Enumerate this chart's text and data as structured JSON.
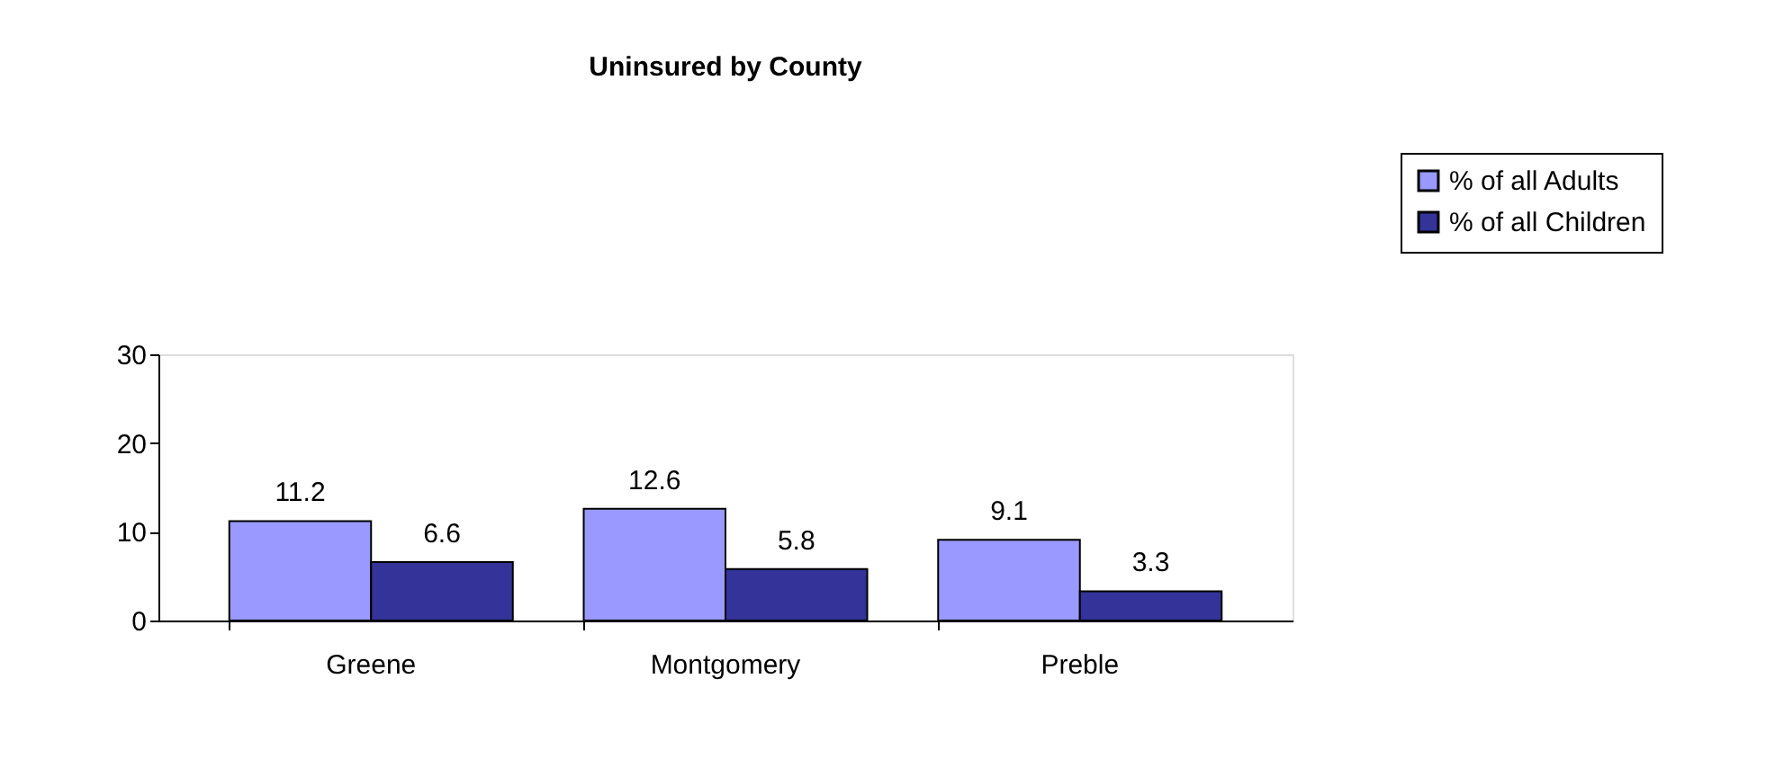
{
  "chart_data": {
    "type": "bar",
    "title": "Uninsured by County",
    "categories": [
      "Greene",
      "Montgomery",
      "Preble"
    ],
    "series": [
      {
        "name": "% of all Adults",
        "color": "#9999ff",
        "values": [
          11.2,
          12.6,
          9.1
        ]
      },
      {
        "name": "% of all Children",
        "color": "#333399",
        "values": [
          6.6,
          5.8,
          3.3
        ]
      }
    ],
    "ylim": [
      0,
      30
    ],
    "yticks": [
      0,
      10,
      20,
      30
    ],
    "data_labels": true,
    "grid": false,
    "legend": "top right"
  }
}
